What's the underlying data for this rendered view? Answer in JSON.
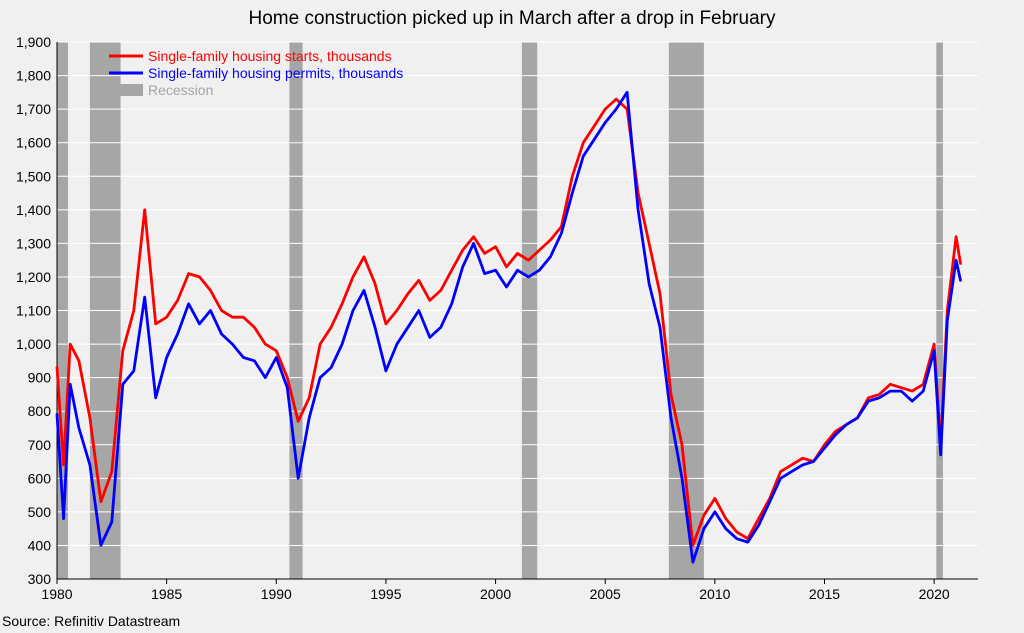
{
  "chart_data": {
    "type": "line",
    "title": "Home construction picked up in March after a drop in February",
    "source": "Source: Refinitiv Datastream",
    "xlabel": "",
    "ylabel": "",
    "xlim": [
      1980,
      2022
    ],
    "ylim": [
      300,
      1900
    ],
    "x_ticks": [
      "1980",
      "1985",
      "1990",
      "1995",
      "2000",
      "2005",
      "2010",
      "2015",
      "2020"
    ],
    "y_ticks": [
      "300",
      "400",
      "500",
      "600",
      "700",
      "800",
      "900",
      "1,000",
      "1,100",
      "1,200",
      "1,300",
      "1,400",
      "1,500",
      "1,600",
      "1,700",
      "1,800",
      "1,900"
    ],
    "grid": true,
    "legend_position": "top-left",
    "recessions": [
      [
        1980.0,
        1980.5
      ],
      [
        1981.5,
        1982.9
      ],
      [
        1990.6,
        1991.2
      ],
      [
        2001.2,
        2001.9
      ],
      [
        2007.9,
        2009.5
      ],
      [
        2020.1,
        2020.4
      ]
    ],
    "series": [
      {
        "name": "Single-family housing starts, thousands",
        "color": "#ff0000",
        "x": [
          1980.0,
          1980.3,
          1980.6,
          1981.0,
          1981.5,
          1982.0,
          1982.5,
          1983.0,
          1983.5,
          1984.0,
          1984.5,
          1985.0,
          1985.5,
          1986.0,
          1986.5,
          1987.0,
          1987.5,
          1988.0,
          1988.5,
          1989.0,
          1989.5,
          1990.0,
          1990.5,
          1991.0,
          1991.5,
          1992.0,
          1992.5,
          1993.0,
          1993.5,
          1994.0,
          1994.5,
          1995.0,
          1995.5,
          1996.0,
          1996.5,
          1997.0,
          1997.5,
          1998.0,
          1998.5,
          1999.0,
          1999.5,
          2000.0,
          2000.5,
          2001.0,
          2001.5,
          2002.0,
          2002.5,
          2003.0,
          2003.5,
          2004.0,
          2004.5,
          2005.0,
          2005.5,
          2006.0,
          2006.5,
          2007.0,
          2007.5,
          2008.0,
          2008.5,
          2009.0,
          2009.5,
          2010.0,
          2010.5,
          2011.0,
          2011.5,
          2012.0,
          2012.5,
          2013.0,
          2013.5,
          2014.0,
          2014.5,
          2015.0,
          2015.5,
          2016.0,
          2016.5,
          2017.0,
          2017.5,
          2018.0,
          2018.5,
          2019.0,
          2019.5,
          2020.0,
          2020.3,
          2020.6,
          2021.0,
          2021.2
        ],
        "values": [
          930,
          640,
          1000,
          950,
          780,
          530,
          620,
          980,
          1100,
          1400,
          1060,
          1080,
          1130,
          1210,
          1200,
          1160,
          1100,
          1080,
          1080,
          1050,
          1000,
          980,
          900,
          770,
          840,
          1000,
          1050,
          1120,
          1200,
          1260,
          1180,
          1060,
          1100,
          1150,
          1190,
          1130,
          1160,
          1220,
          1280,
          1320,
          1270,
          1290,
          1230,
          1270,
          1250,
          1280,
          1310,
          1350,
          1500,
          1600,
          1650,
          1700,
          1730,
          1700,
          1450,
          1300,
          1150,
          850,
          700,
          400,
          490,
          540,
          480,
          440,
          420,
          480,
          540,
          620,
          640,
          660,
          650,
          700,
          740,
          760,
          780,
          840,
          850,
          880,
          870,
          860,
          880,
          1000,
          700,
          1100,
          1320,
          1240
        ]
      },
      {
        "name": "Single-family housing permits, thousands",
        "color": "#0000ff",
        "x": [
          1980.0,
          1980.3,
          1980.6,
          1981.0,
          1981.5,
          1982.0,
          1982.5,
          1983.0,
          1983.5,
          1984.0,
          1984.5,
          1985.0,
          1985.5,
          1986.0,
          1986.5,
          1987.0,
          1987.5,
          1988.0,
          1988.5,
          1989.0,
          1989.5,
          1990.0,
          1990.5,
          1991.0,
          1991.5,
          1992.0,
          1992.5,
          1993.0,
          1993.5,
          1994.0,
          1994.5,
          1995.0,
          1995.5,
          1996.0,
          1996.5,
          1997.0,
          1997.5,
          1998.0,
          1998.5,
          1999.0,
          1999.5,
          2000.0,
          2000.5,
          2001.0,
          2001.5,
          2002.0,
          2002.5,
          2003.0,
          2003.5,
          2004.0,
          2004.5,
          2005.0,
          2005.5,
          2006.0,
          2006.5,
          2007.0,
          2007.5,
          2008.0,
          2008.5,
          2009.0,
          2009.5,
          2010.0,
          2010.5,
          2011.0,
          2011.5,
          2012.0,
          2012.5,
          2013.0,
          2013.5,
          2014.0,
          2014.5,
          2015.0,
          2015.5,
          2016.0,
          2016.5,
          2017.0,
          2017.5,
          2018.0,
          2018.5,
          2019.0,
          2019.5,
          2020.0,
          2020.3,
          2020.6,
          2021.0,
          2021.2
        ],
        "values": [
          790,
          480,
          880,
          750,
          640,
          400,
          470,
          880,
          920,
          1140,
          840,
          960,
          1030,
          1120,
          1060,
          1100,
          1030,
          1000,
          960,
          950,
          900,
          960,
          870,
          600,
          780,
          900,
          930,
          1000,
          1100,
          1160,
          1050,
          920,
          1000,
          1050,
          1100,
          1020,
          1050,
          1120,
          1230,
          1300,
          1210,
          1220,
          1170,
          1220,
          1200,
          1220,
          1260,
          1330,
          1450,
          1560,
          1610,
          1660,
          1700,
          1750,
          1400,
          1180,
          1050,
          780,
          600,
          350,
          450,
          500,
          450,
          420,
          410,
          460,
          530,
          600,
          620,
          640,
          650,
          690,
          730,
          760,
          780,
          830,
          840,
          860,
          860,
          830,
          860,
          980,
          670,
          1070,
          1250,
          1190
        ]
      }
    ],
    "legend": [
      {
        "label": "Single-family housing starts, thousands",
        "color": "#ff0000",
        "kind": "line"
      },
      {
        "label": "Single-family housing permits, thousands",
        "color": "#0000ff",
        "kind": "line"
      },
      {
        "label": "Recession",
        "color": "#a6a6a6",
        "text_color": "#a6a6a6",
        "kind": "box"
      }
    ],
    "colors": {
      "background": "#f0f0f0",
      "plot_background": "#f0f0f0",
      "grid": "#ffffff",
      "recession": "#a6a6a6"
    }
  }
}
